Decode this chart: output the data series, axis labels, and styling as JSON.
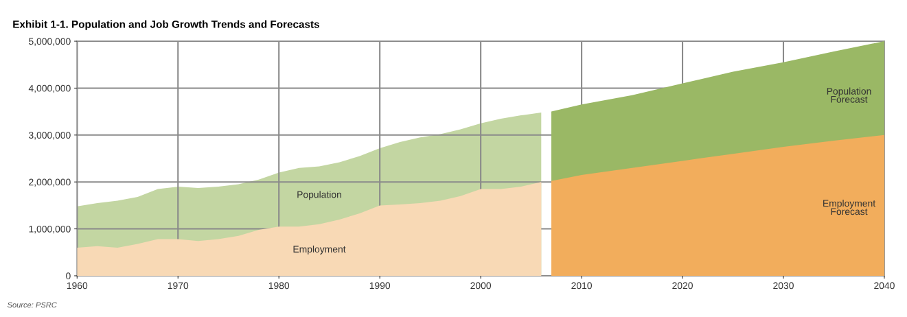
{
  "chart_data": {
    "type": "area",
    "title": "Exhibit 1-1. Population and Job Growth Trends and Forecasts",
    "series": [
      {
        "name": "Population",
        "color": "#c3d6a2",
        "x": [
          1960,
          1962,
          1964,
          1966,
          1968,
          1970,
          1972,
          1974,
          1976,
          1978,
          1980,
          1982,
          1984,
          1986,
          1988,
          1990,
          1992,
          1994,
          1996,
          1998,
          2000,
          2002,
          2004,
          2006
        ],
        "values": [
          1480000,
          1550000,
          1600000,
          1680000,
          1850000,
          1900000,
          1870000,
          1900000,
          1950000,
          2050000,
          2200000,
          2300000,
          2330000,
          2420000,
          2550000,
          2720000,
          2850000,
          2950000,
          3020000,
          3120000,
          3250000,
          3350000,
          3420000,
          3480000
        ]
      },
      {
        "name": "Employment",
        "color": "#f8d9b5",
        "x": [
          1960,
          1962,
          1964,
          1966,
          1968,
          1970,
          1972,
          1974,
          1976,
          1978,
          1980,
          1982,
          1984,
          1986,
          1988,
          1990,
          1992,
          1994,
          1996,
          1998,
          2000,
          2002,
          2004,
          2006
        ],
        "values": [
          600000,
          630000,
          600000,
          680000,
          780000,
          780000,
          740000,
          780000,
          850000,
          980000,
          1050000,
          1050000,
          1100000,
          1200000,
          1330000,
          1500000,
          1520000,
          1550000,
          1600000,
          1700000,
          1850000,
          1850000,
          1900000,
          2000000
        ]
      },
      {
        "name": "Population\nForecast",
        "color": "#9ab865",
        "x": [
          2007,
          2010,
          2015,
          2020,
          2025,
          2030,
          2035,
          2040
        ],
        "values": [
          3500000,
          3650000,
          3850000,
          4100000,
          4350000,
          4550000,
          4780000,
          5000000
        ]
      },
      {
        "name": "Employment\nForecast",
        "color": "#f2ad5c",
        "x": [
          2007,
          2010,
          2015,
          2020,
          2025,
          2030,
          2035,
          2040
        ],
        "values": [
          2020000,
          2150000,
          2300000,
          2450000,
          2600000,
          2750000,
          2880000,
          3000000
        ]
      }
    ],
    "xlim": [
      1960,
      2040
    ],
    "xticks": [
      1960,
      1970,
      1980,
      1990,
      2000,
      2010,
      2020,
      2030,
      2040
    ],
    "ylim": [
      0,
      5000000
    ],
    "yticks": [
      0,
      {
        "value": 1000000,
        "label": "1,000,000"
      },
      {
        "value": 2000000,
        "label": "2,000,000"
      },
      {
        "value": 3000000,
        "label": "3,000,000"
      },
      {
        "value": 4000000,
        "label": "4,000,000"
      },
      {
        "value": 5000000,
        "label": "5,000,000"
      }
    ],
    "grid": true,
    "legend": false,
    "annotations": [
      "Source: PSRC"
    ]
  }
}
